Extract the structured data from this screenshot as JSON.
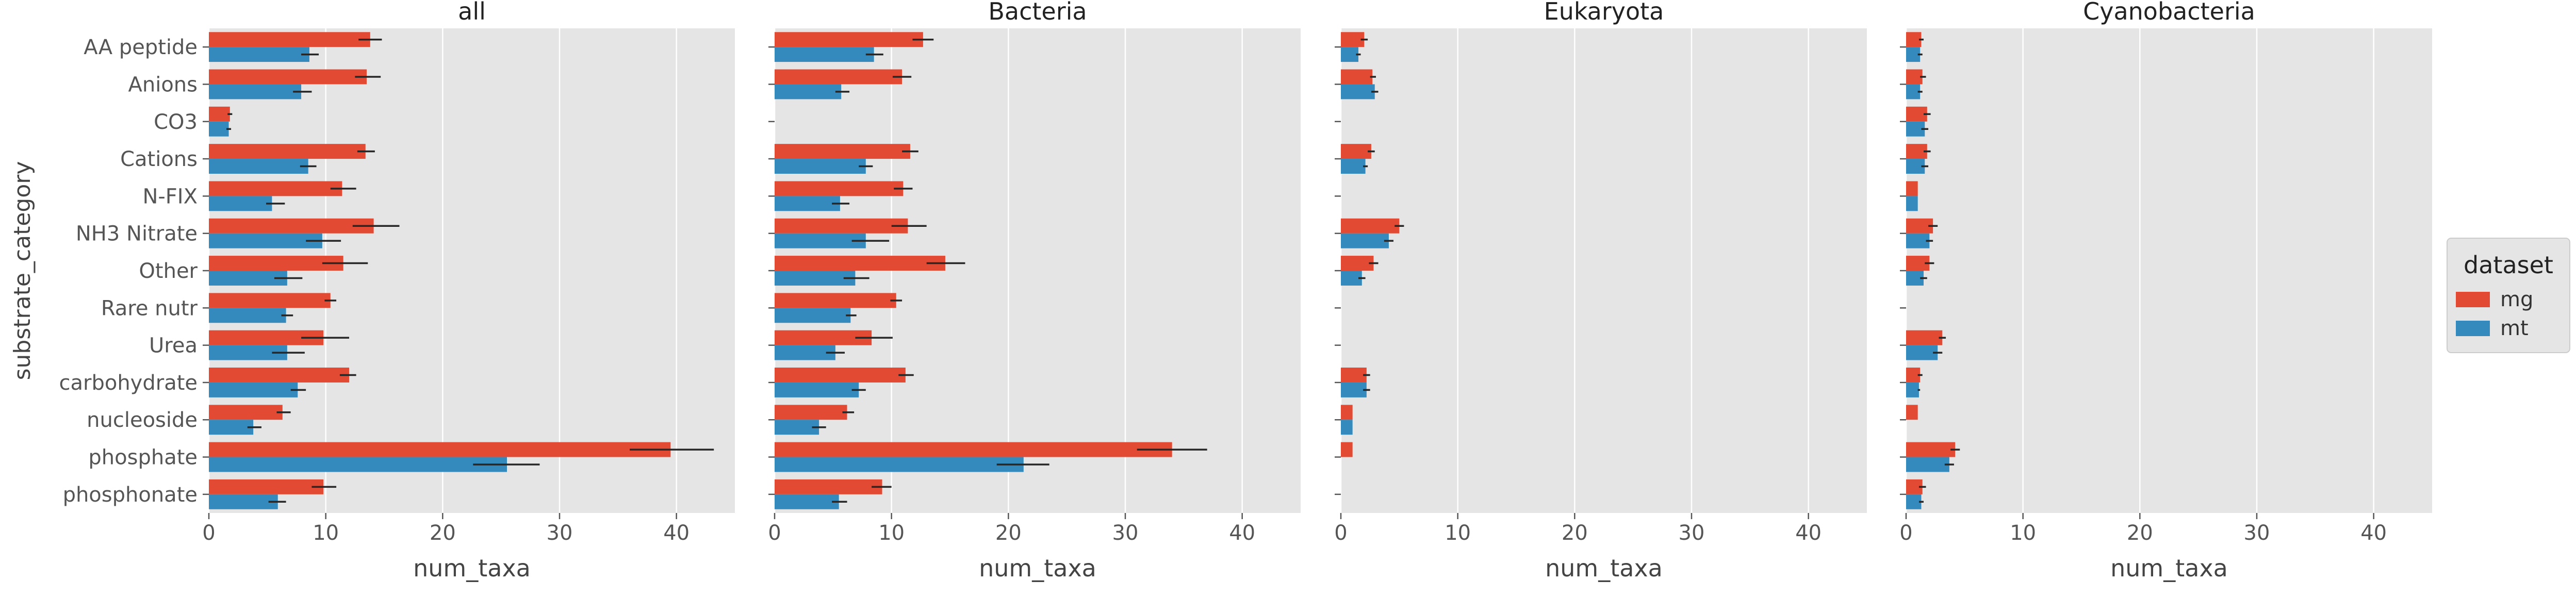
{
  "chart_data": {
    "type": "bar",
    "orientation": "horizontal",
    "ylabel": "substrate_category",
    "xlabel": "num_taxa",
    "xlim": [
      0,
      45
    ],
    "xticks": [
      0,
      10,
      20,
      30,
      40
    ],
    "grid": true,
    "legend": {
      "title": "dataset",
      "placement": "right",
      "entries": [
        "mg",
        "mt"
      ]
    },
    "colors": {
      "mg": "#E24A33",
      "mt": "#348ABD",
      "panel_bg": "#E5E5E5",
      "grid": "#ffffff",
      "errorbar": "#262626"
    },
    "categories": [
      "AA peptide",
      "Anions",
      "CO3",
      "Cations",
      "N-FIX",
      "NH3 Nitrate",
      "Other",
      "Rare nutr",
      "Urea",
      "carbohydrate",
      "nucleoside",
      "phosphate",
      "phosphonate"
    ],
    "panels": [
      {
        "title": "all",
        "series": [
          {
            "name": "mg",
            "values": [
              13.8,
              13.5,
              1.8,
              13.4,
              11.4,
              14.1,
              11.5,
              10.4,
              9.8,
              12.0,
              6.3,
              39.5,
              9.8
            ],
            "err_low": [
              12.8,
              12.5,
              1.6,
              12.7,
              10.4,
              12.3,
              9.7,
              9.9,
              7.9,
              11.2,
              5.8,
              36.0,
              8.8
            ],
            "err_high": [
              14.8,
              14.7,
              2.0,
              14.2,
              12.6,
              16.3,
              13.6,
              10.9,
              12.0,
              12.6,
              7.0,
              43.2,
              10.9
            ]
          },
          {
            "name": "mt",
            "values": [
              8.6,
              7.9,
              1.7,
              8.5,
              5.4,
              9.7,
              6.7,
              6.6,
              6.7,
              7.6,
              3.8,
              25.5,
              5.9
            ],
            "err_low": [
              7.9,
              7.2,
              1.5,
              7.8,
              4.9,
              8.3,
              5.6,
              6.2,
              5.4,
              7.0,
              3.3,
              22.6,
              5.1
            ],
            "err_high": [
              9.4,
              8.8,
              1.9,
              9.2,
              6.5,
              11.3,
              8.0,
              7.2,
              8.2,
              8.3,
              4.5,
              28.3,
              6.6
            ]
          }
        ]
      },
      {
        "title": "Bacteria",
        "series": [
          {
            "name": "mg",
            "values": [
              12.7,
              10.9,
              null,
              11.6,
              11.0,
              11.4,
              14.6,
              10.4,
              8.3,
              11.2,
              6.2,
              34.0,
              9.2
            ],
            "err_low": [
              11.8,
              10.1,
              null,
              10.9,
              10.2,
              10.0,
              13.0,
              9.9,
              6.9,
              10.6,
              5.8,
              31.0,
              8.3
            ],
            "err_high": [
              13.6,
              11.7,
              null,
              12.3,
              11.8,
              13.0,
              16.3,
              10.9,
              10.1,
              11.9,
              6.8,
              37.0,
              10.0
            ]
          },
          {
            "name": "mt",
            "values": [
              8.5,
              5.7,
              null,
              7.8,
              5.6,
              7.8,
              6.9,
              6.5,
              5.2,
              7.2,
              3.8,
              21.3,
              5.5
            ],
            "err_low": [
              7.8,
              5.2,
              null,
              7.2,
              4.9,
              6.6,
              5.9,
              6.1,
              4.4,
              6.6,
              3.2,
              19.0,
              4.9
            ],
            "err_high": [
              9.3,
              6.4,
              null,
              8.4,
              6.4,
              9.8,
              8.1,
              7.0,
              6.0,
              7.8,
              4.4,
              23.5,
              6.2
            ]
          }
        ]
      },
      {
        "title": "Eukaryota",
        "series": [
          {
            "name": "mg",
            "values": [
              2.0,
              2.7,
              null,
              2.6,
              null,
              5.0,
              2.8,
              null,
              null,
              2.2,
              1.0,
              1.0,
              null
            ],
            "err_low": [
              1.7,
              2.5,
              null,
              2.3,
              null,
              4.6,
              2.4,
              null,
              null,
              1.9,
              1.0,
              1.0,
              null
            ],
            "err_high": [
              2.3,
              3.0,
              null,
              2.9,
              null,
              5.4,
              3.2,
              null,
              null,
              2.5,
              1.0,
              1.0,
              null
            ]
          },
          {
            "name": "mt",
            "values": [
              1.5,
              2.9,
              null,
              2.1,
              null,
              4.1,
              1.8,
              null,
              null,
              2.2,
              1.0,
              null,
              null
            ],
            "err_low": [
              1.3,
              2.6,
              null,
              1.9,
              null,
              3.7,
              1.5,
              null,
              null,
              1.9,
              1.0,
              null,
              null
            ],
            "err_high": [
              1.7,
              3.2,
              null,
              2.3,
              null,
              4.5,
              2.1,
              null,
              null,
              2.5,
              1.0,
              null,
              null
            ]
          }
        ]
      },
      {
        "title": "Cyanobacteria",
        "series": [
          {
            "name": "mg",
            "values": [
              1.3,
              1.4,
              1.8,
              1.8,
              1.0,
              2.3,
              2.0,
              null,
              3.1,
              1.2,
              1.0,
              4.2,
              1.4
            ],
            "err_low": [
              1.1,
              1.2,
              1.5,
              1.5,
              1.0,
              1.9,
              1.6,
              null,
              2.8,
              1.0,
              1.0,
              3.8,
              1.1
            ],
            "err_high": [
              1.5,
              1.7,
              2.1,
              2.1,
              1.0,
              2.7,
              2.4,
              null,
              3.4,
              1.4,
              1.0,
              4.6,
              1.7
            ]
          },
          {
            "name": "mt",
            "values": [
              1.2,
              1.2,
              1.6,
              1.6,
              1.0,
              2.0,
              1.5,
              null,
              2.7,
              1.1,
              null,
              3.7,
              1.3
            ],
            "err_low": [
              1.0,
              1.0,
              1.3,
              1.3,
              1.0,
              1.7,
              1.2,
              null,
              2.3,
              1.0,
              null,
              3.3,
              1.1
            ],
            "err_high": [
              1.4,
              1.4,
              1.9,
              1.9,
              1.0,
              2.3,
              1.8,
              null,
              3.1,
              1.2,
              null,
              4.1,
              1.5
            ]
          }
        ]
      }
    ]
  }
}
